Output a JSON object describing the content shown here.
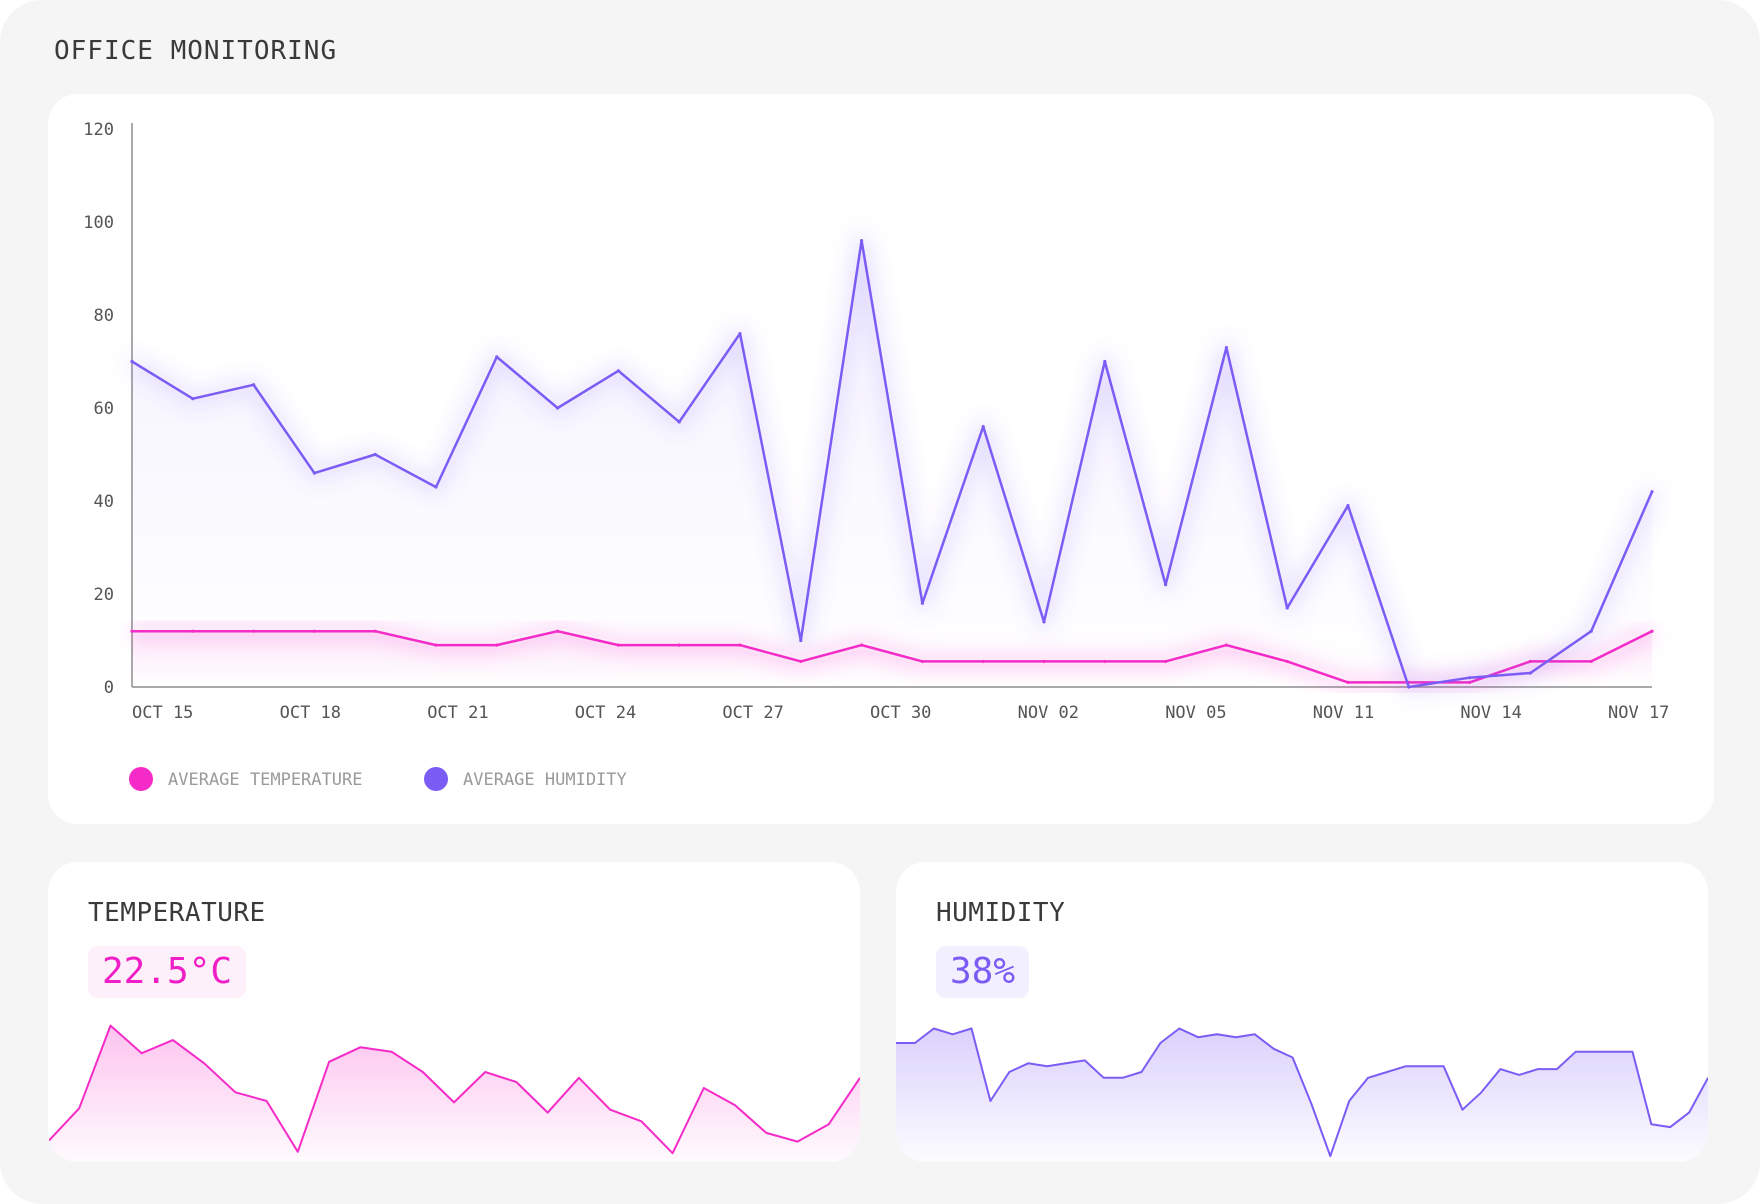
{
  "page_title": "OFFICE MONITORING",
  "colors": {
    "temperature": "#f52bc8",
    "humidity": "#7b5cf5",
    "background": "#f5f5f5",
    "card": "#ffffff"
  },
  "chart_data": {
    "type": "line",
    "title": "",
    "xlabel": "",
    "ylabel": "",
    "ylim": [
      0,
      120
    ],
    "y_ticks": [
      "0",
      "20",
      "40",
      "60",
      "80",
      "100",
      "120"
    ],
    "x_tick_labels": [
      "OCT 15",
      "OCT 18",
      "OCT 21",
      "OCT 24",
      "OCT 27",
      "OCT 30",
      "NOV 02",
      "NOV 05",
      "NOV 11",
      "NOV 14",
      "NOV 17"
    ],
    "grid": false,
    "legend_position": "bottom-left",
    "series": [
      {
        "name": "AVERAGE TEMPERATURE",
        "color": "#f52bc8",
        "values": [
          12,
          12,
          12,
          12,
          12,
          9,
          9,
          12,
          9,
          9,
          9,
          5.5,
          9,
          5.5,
          5.5,
          5.5,
          5.5,
          5.5,
          9,
          5.5,
          1,
          1,
          1,
          5.5,
          5.5,
          12
        ]
      },
      {
        "name": "AVERAGE HUMIDITY",
        "color": "#7b5cf5",
        "values": [
          70,
          62,
          65,
          46,
          50,
          43,
          71,
          60,
          68,
          57,
          76,
          10,
          96,
          18,
          56,
          14,
          70,
          22,
          73,
          17,
          39,
          0,
          2,
          3,
          12,
          42
        ]
      }
    ]
  },
  "temperature_card": {
    "title": "TEMPERATURE",
    "value": "22.5°C",
    "sparkline": [
      12,
      35,
      92,
      73,
      82,
      66,
      46,
      40,
      5,
      67,
      77,
      74,
      60,
      39,
      60,
      53,
      32,
      56,
      34,
      26,
      4,
      49,
      37,
      18,
      12,
      24,
      56
    ]
  },
  "humidity_card": {
    "title": "HUMIDITY",
    "value": "38%",
    "sparkline": [
      80,
      80,
      90,
      86,
      90,
      40,
      60,
      66,
      64,
      66,
      68,
      56,
      56,
      60,
      80,
      90,
      84,
      86,
      84,
      86,
      76,
      70,
      38,
      2,
      40,
      56,
      60,
      64,
      64,
      64,
      34,
      46,
      62,
      58,
      62,
      62,
      74,
      74,
      74,
      74,
      24,
      22,
      32,
      56
    ]
  }
}
